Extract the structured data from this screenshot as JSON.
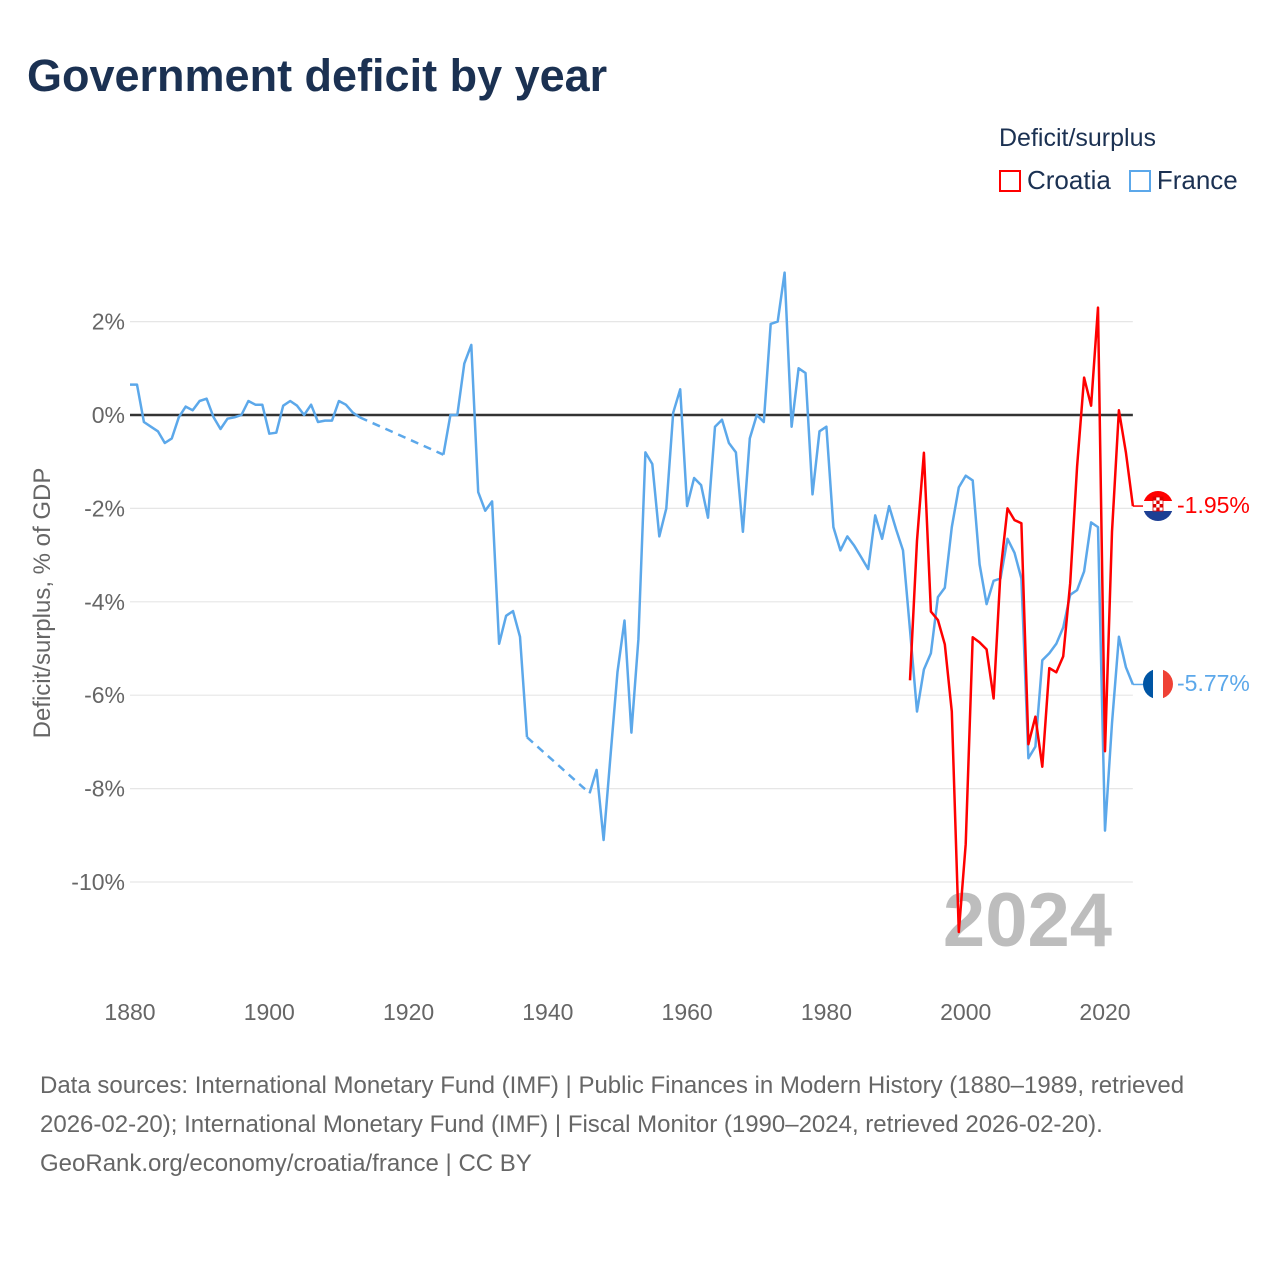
{
  "title": "Government deficit by year",
  "legend": {
    "title": "Deficit/surplus",
    "items": [
      {
        "name": "Croatia",
        "color": "#ff0000"
      },
      {
        "name": "France",
        "color": "#5ca8ea"
      }
    ]
  },
  "footer": {
    "sources": "Data sources: International Monetary Fund (IMF) | Public Finances in Modern History (1880–1989, retrieved 2026-02-20); International Monetary Fund (IMF) | Fiscal Monitor (1990–2024, retrieved 2026-02-20).",
    "credit": "GeoRank.org/economy/croatia/france | CC BY"
  },
  "chart_data": {
    "type": "line",
    "title": "Government deficit by year",
    "ylabel": "Deficit/surplus, % of GDP",
    "xlabel": "",
    "xlim": [
      1880,
      2024
    ],
    "ylim": [
      -12,
      3.2
    ],
    "x_ticks": [
      1880,
      1900,
      1920,
      1940,
      1960,
      1980,
      2000,
      2020
    ],
    "x_tick_labels": [
      "1880",
      "1900",
      "1920",
      "1940",
      "1960",
      "1980",
      "2000",
      "2020"
    ],
    "y_ticks": [
      2,
      0,
      -2,
      -4,
      -6,
      -8,
      -10
    ],
    "y_tick_labels": [
      "2%",
      "0%",
      "-2%",
      "-4%",
      "-6%",
      "-8%",
      "-10%"
    ],
    "grid": true,
    "year_watermark": "2024",
    "legend_position": "top-right",
    "series": [
      {
        "name": "Croatia",
        "color": "#ff0000",
        "start_year": 1992,
        "end_label": "-1.95%",
        "values": [
          -5.68,
          -2.69,
          -0.81,
          -4.21,
          -4.39,
          -4.91,
          -6.35,
          -11.07,
          -9.19,
          -4.76,
          -4.87,
          -5.02,
          -6.07,
          -3.36,
          -2.0,
          -2.25,
          -2.32,
          -7.05,
          -6.46,
          -7.53,
          -5.42,
          -5.51,
          -5.17,
          -3.6,
          -1.1,
          0.8,
          0.2,
          2.3,
          -7.2,
          -2.5,
          0.1,
          -0.8,
          -1.95
        ]
      },
      {
        "name": "France",
        "color": "#5ca8ea",
        "start_year": 1880,
        "end_label": "-5.77%",
        "values": [
          0.65,
          0.65,
          -0.15,
          -0.25,
          -0.35,
          -0.6,
          -0.5,
          -0.05,
          0.18,
          0.1,
          0.3,
          0.35,
          -0.05,
          -0.3,
          -0.08,
          -0.05,
          0,
          0.3,
          0.22,
          0.22,
          -0.4,
          -0.38,
          0.2,
          0.3,
          0.2,
          0,
          0.22,
          -0.15,
          -0.12,
          -0.12,
          0.3,
          0.22,
          0.05,
          -0.05,
          null,
          null,
          null,
          null,
          null,
          null,
          null,
          null,
          null,
          null,
          null,
          -0.85,
          0,
          0,
          1.1,
          1.5,
          -1.65,
          -2.05,
          -1.85,
          -4.9,
          -4.3,
          -4.2,
          -4.75,
          -6.9,
          null,
          null,
          null,
          null,
          null,
          null,
          null,
          null,
          -8.1,
          -7.6,
          -9.1,
          -7.3,
          -5.5,
          -4.4,
          -6.8,
          -4.8,
          -0.8,
          -1.05,
          -2.6,
          -2.0,
          0.05,
          0.55,
          -1.95,
          -1.35,
          -1.5,
          -2.2,
          -0.25,
          -0.1,
          -0.6,
          -0.8,
          -2.5,
          -0.5,
          0,
          -0.15,
          1.95,
          2.0,
          3.05,
          -0.25,
          1.0,
          0.9,
          -1.7,
          -0.35,
          -0.25,
          -2.4,
          -2.9,
          -2.6,
          -2.8,
          -3.05,
          -3.3,
          -2.15,
          -2.65,
          -1.95,
          -2.45,
          -2.9,
          -4.6,
          -6.35,
          -5.45,
          -5.1,
          -3.9,
          -3.7,
          -2.4,
          -1.55,
          -1.3,
          -1.4,
          -3.2,
          -4.05,
          -3.55,
          -3.5,
          -2.65,
          -2.95,
          -3.5,
          -7.35,
          -7.1,
          -5.25,
          -5.1,
          -4.9,
          -4.55,
          -3.85,
          -3.75,
          -3.35,
          -2.3,
          -2.4,
          -8.9,
          -6.6,
          -4.75,
          -5.4,
          -5.77
        ]
      }
    ]
  }
}
